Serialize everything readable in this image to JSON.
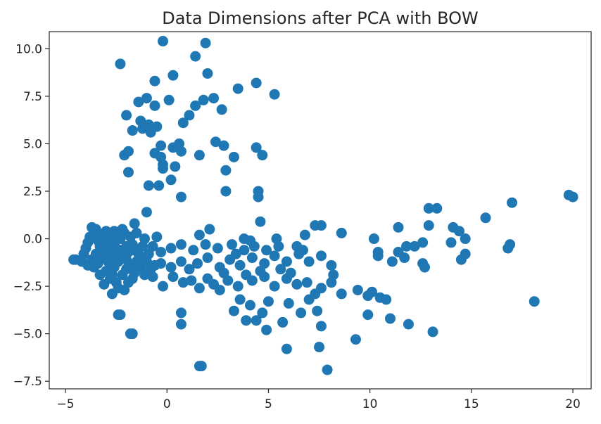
{
  "chart_data": {
    "type": "scatter",
    "title": "Data Dimensions after PCA with BOW",
    "xlabel": "",
    "ylabel": "",
    "xlim": [
      -5.8,
      20.9
    ],
    "ylim": [
      -7.9,
      10.9
    ],
    "xticks": [
      -5,
      0,
      5,
      10,
      15,
      20
    ],
    "xtick_labels": [
      "−5",
      "0",
      "5",
      "10",
      "15",
      "20"
    ],
    "yticks": [
      -7.5,
      -5.0,
      -2.5,
      0.0,
      2.5,
      5.0,
      7.5,
      10.0
    ],
    "ytick_labels": [
      "−7.5",
      "−5.0",
      "−2.5",
      "0.0",
      "2.5",
      "5.0",
      "7.5",
      "10.0"
    ],
    "grid": false,
    "marker_color": "#1f77b4",
    "points": [
      [
        -0.2,
        10.4
      ],
      [
        1.9,
        10.3
      ],
      [
        -2.3,
        9.2
      ],
      [
        1.4,
        9.6
      ],
      [
        2.0,
        8.7
      ],
      [
        0.3,
        8.6
      ],
      [
        -0.6,
        8.3
      ],
      [
        4.4,
        8.2
      ],
      [
        3.5,
        7.9
      ],
      [
        5.3,
        7.6
      ],
      [
        -1.4,
        7.2
      ],
      [
        -1.0,
        7.4
      ],
      [
        -0.6,
        7.0
      ],
      [
        0.1,
        7.3
      ],
      [
        1.4,
        7.0
      ],
      [
        1.8,
        7.3
      ],
      [
        2.3,
        7.4
      ],
      [
        2.7,
        6.8
      ],
      [
        1.1,
        6.5
      ],
      [
        0.8,
        6.1
      ],
      [
        -2.0,
        6.5
      ],
      [
        -1.3,
        6.2
      ],
      [
        -0.9,
        6.0
      ],
      [
        -0.5,
        5.9
      ],
      [
        -1.7,
        5.7
      ],
      [
        -1.2,
        5.8
      ],
      [
        -0.8,
        5.6
      ],
      [
        -0.3,
        4.9
      ],
      [
        0.3,
        4.8
      ],
      [
        0.6,
        5.0
      ],
      [
        0.7,
        4.6
      ],
      [
        2.4,
        5.1
      ],
      [
        2.8,
        4.9
      ],
      [
        4.4,
        4.8
      ],
      [
        4.7,
        4.4
      ],
      [
        -2.1,
        4.4
      ],
      [
        -1.9,
        4.6
      ],
      [
        -0.6,
        4.5
      ],
      [
        -0.3,
        4.3
      ],
      [
        -0.2,
        3.9
      ],
      [
        -0.2,
        3.7
      ],
      [
        0.4,
        3.8
      ],
      [
        1.6,
        4.4
      ],
      [
        2.9,
        3.6
      ],
      [
        3.3,
        4.3
      ],
      [
        -1.9,
        3.5
      ],
      [
        -0.9,
        2.8
      ],
      [
        -0.4,
        2.8
      ],
      [
        0.2,
        3.1
      ],
      [
        0.7,
        2.2
      ],
      [
        2.9,
        2.5
      ],
      [
        4.5,
        2.5
      ],
      [
        4.5,
        2.2
      ],
      [
        -1.0,
        1.4
      ],
      [
        7.3,
        0.7
      ],
      [
        7.6,
        0.7
      ],
      [
        8.6,
        0.3
      ],
      [
        10.2,
        0.0
      ],
      [
        11.4,
        0.6
      ],
      [
        12.9,
        1.6
      ],
      [
        13.3,
        1.6
      ],
      [
        15.7,
        1.1
      ],
      [
        17.0,
        1.9
      ],
      [
        19.8,
        2.3
      ],
      [
        20.0,
        2.2
      ],
      [
        12.9,
        0.7
      ],
      [
        14.1,
        0.6
      ],
      [
        14.4,
        0.4
      ],
      [
        14.7,
        0.0
      ],
      [
        14.0,
        -0.2
      ],
      [
        16.9,
        -0.3
      ],
      [
        16.8,
        -0.5
      ],
      [
        12.6,
        -0.2
      ],
      [
        12.2,
        -0.4
      ],
      [
        11.8,
        -0.4
      ],
      [
        11.4,
        -0.7
      ],
      [
        10.4,
        -0.7
      ],
      [
        10.4,
        -0.9
      ],
      [
        11.1,
        -1.2
      ],
      [
        11.7,
        -1.0
      ],
      [
        14.7,
        -0.8
      ],
      [
        14.5,
        -1.1
      ],
      [
        12.6,
        -1.3
      ],
      [
        12.7,
        -1.5
      ],
      [
        9.4,
        -2.7
      ],
      [
        9.9,
        -3.0
      ],
      [
        10.1,
        -2.8
      ],
      [
        10.5,
        -3.1
      ],
      [
        10.8,
        -3.2
      ],
      [
        9.9,
        -4.0
      ],
      [
        11.0,
        -4.2
      ],
      [
        11.9,
        -4.5
      ],
      [
        13.1,
        -4.9
      ],
      [
        18.1,
        -3.3
      ],
      [
        9.3,
        -5.3
      ],
      [
        7.9,
        -6.9
      ],
      [
        7.5,
        -5.7
      ],
      [
        5.9,
        -5.8
      ],
      [
        7.6,
        -4.6
      ],
      [
        5.7,
        -4.4
      ],
      [
        4.9,
        -4.8
      ],
      [
        4.4,
        -4.3
      ],
      [
        4.7,
        -3.9
      ],
      [
        3.9,
        -4.3
      ],
      [
        3.3,
        -3.8
      ],
      [
        3.6,
        -3.2
      ],
      [
        4.1,
        -3.5
      ],
      [
        5.0,
        -3.3
      ],
      [
        6.0,
        -3.4
      ],
      [
        6.6,
        -3.9
      ],
      [
        7.4,
        -3.8
      ],
      [
        7.0,
        -3.2
      ],
      [
        7.3,
        -2.9
      ],
      [
        7.6,
        -2.6
      ],
      [
        6.9,
        -2.3
      ],
      [
        6.4,
        -2.4
      ],
      [
        5.9,
        -2.1
      ],
      [
        5.3,
        -2.5
      ],
      [
        4.8,
        -2.0
      ],
      [
        4.2,
        -2.2
      ],
      [
        3.5,
        -2.5
      ],
      [
        3.0,
        -2.2
      ],
      [
        2.6,
        -2.7
      ],
      [
        2.3,
        -2.4
      ],
      [
        2.0,
        -2.1
      ],
      [
        1.6,
        -2.6
      ],
      [
        1.2,
        -2.2
      ],
      [
        0.8,
        -2.3
      ],
      [
        0.3,
        -2.0
      ],
      [
        -0.2,
        -2.5
      ],
      [
        -0.7,
        -2.0
      ],
      [
        -0.8,
        -1.6
      ],
      [
        -0.3,
        -1.3
      ],
      [
        0.2,
        -1.5
      ],
      [
        0.7,
        -1.2
      ],
      [
        1.1,
        -1.6
      ],
      [
        1.5,
        -1.3
      ],
      [
        2.0,
        -1.0
      ],
      [
        2.6,
        -1.5
      ],
      [
        3.1,
        -1.1
      ],
      [
        3.6,
        -1.4
      ],
      [
        4.2,
        -1.0
      ],
      [
        4.8,
        -1.3
      ],
      [
        5.3,
        -0.9
      ],
      [
        5.9,
        -1.2
      ],
      [
        6.5,
        -0.8
      ],
      [
        7.0,
        -1.2
      ],
      [
        7.6,
        -0.9
      ],
      [
        8.1,
        -1.4
      ],
      [
        8.2,
        -1.9
      ],
      [
        6.4,
        -0.4
      ],
      [
        6.7,
        -0.6
      ],
      [
        5.5,
        -0.4
      ],
      [
        4.9,
        -0.6
      ],
      [
        4.3,
        -0.4
      ],
      [
        3.8,
        -0.6
      ],
      [
        3.2,
        -0.3
      ],
      [
        2.5,
        -0.5
      ],
      [
        1.9,
        -0.3
      ],
      [
        1.3,
        -0.6
      ],
      [
        0.7,
        -0.3
      ],
      [
        0.2,
        -0.5
      ],
      [
        -0.3,
        -0.7
      ],
      [
        -0.7,
        -0.4
      ],
      [
        1.6,
        0.2
      ],
      [
        2.1,
        0.5
      ],
      [
        3.8,
        0.0
      ],
      [
        4.6,
        0.9
      ],
      [
        5.4,
        0.0
      ],
      [
        6.8,
        0.2
      ],
      [
        4.1,
        -0.1
      ],
      [
        3.4,
        -0.8
      ],
      [
        2.8,
        -1.8
      ],
      [
        3.9,
        -1.9
      ],
      [
        4.6,
        -1.7
      ],
      [
        5.6,
        -1.6
      ],
      [
        6.1,
        -1.8
      ],
      [
        8.6,
        -2.9
      ],
      [
        8.1,
        -2.3
      ],
      [
        1.7,
        -6.7
      ],
      [
        1.6,
        -6.7
      ],
      [
        0.7,
        -3.9
      ],
      [
        0.7,
        -4.5
      ],
      [
        -1.8,
        -5.0
      ],
      [
        -1.7,
        -5.0
      ],
      [
        -2.4,
        -4.0
      ],
      [
        -2.3,
        -4.0
      ],
      [
        -2.7,
        -2.9
      ],
      [
        -2.1,
        -2.7
      ],
      [
        -1.7,
        -2.1
      ],
      [
        -1.3,
        -1.5
      ],
      [
        -0.9,
        -0.8
      ],
      [
        -0.5,
        0.1
      ],
      [
        -1.6,
        0.8
      ],
      [
        -3.5,
        0.5
      ],
      [
        -3.7,
        0.6
      ],
      [
        -4.6,
        -1.1
      ],
      [
        -4.5,
        -1.1
      ],
      [
        -4.1,
        -0.8
      ],
      [
        -4.0,
        -0.5
      ],
      [
        -3.9,
        -0.2
      ],
      [
        -3.8,
        0.1
      ],
      [
        -3.6,
        0.3
      ],
      [
        -3.4,
        -0.1
      ],
      [
        -3.3,
        -0.4
      ],
      [
        -3.5,
        -0.8
      ],
      [
        -3.7,
        -1.1
      ],
      [
        -3.4,
        -1.3
      ],
      [
        -3.2,
        -1.0
      ],
      [
        -3.0,
        -0.7
      ],
      [
        -2.9,
        -0.3
      ],
      [
        -3.1,
        0.0
      ],
      [
        -2.8,
        0.2
      ],
      [
        -2.6,
        -0.1
      ],
      [
        -2.5,
        -0.5
      ],
      [
        -2.7,
        -0.9
      ],
      [
        -2.9,
        -1.2
      ],
      [
        -2.6,
        -1.5
      ],
      [
        -2.4,
        -1.2
      ],
      [
        -2.2,
        -0.8
      ],
      [
        -2.0,
        -0.4
      ],
      [
        -2.3,
        0.0
      ],
      [
        -2.1,
        0.3
      ],
      [
        -1.8,
        0.1
      ],
      [
        -1.7,
        -0.3
      ],
      [
        -1.9,
        -0.7
      ],
      [
        -2.0,
        -1.1
      ],
      [
        -1.8,
        -1.5
      ],
      [
        -1.5,
        -1.2
      ],
      [
        -1.4,
        -0.8
      ],
      [
        -1.2,
        -0.4
      ],
      [
        -1.1,
        0.0
      ],
      [
        -1.5,
        0.3
      ],
      [
        -3.0,
        -1.7
      ],
      [
        -2.8,
        -2.1
      ],
      [
        -3.1,
        -2.4
      ],
      [
        -2.5,
        -2.3
      ],
      [
        -2.2,
        -1.9
      ],
      [
        -1.9,
        -2.3
      ],
      [
        -2.4,
        -2.6
      ],
      [
        -3.3,
        -1.9
      ],
      [
        -3.6,
        -1.5
      ],
      [
        -4.2,
        -1.2
      ],
      [
        -3.9,
        -1.4
      ],
      [
        -2.8,
        -0.6
      ],
      [
        -2.3,
        -0.6
      ],
      [
        -3.2,
        -0.6
      ],
      [
        -1.6,
        -0.6
      ],
      [
        -1.3,
        -1.0
      ],
      [
        -2.6,
        0.4
      ],
      [
        -3.0,
        0.4
      ],
      [
        -2.0,
        -1.6
      ],
      [
        -1.6,
        -1.8
      ],
      [
        -2.7,
        -1.9
      ],
      [
        -3.3,
        0.2
      ],
      [
        -2.2,
        0.5
      ],
      [
        -2.4,
        0.2
      ],
      [
        -1.0,
        -1.2
      ],
      [
        -1.1,
        -1.9
      ],
      [
        -0.6,
        -1.4
      ]
    ]
  }
}
